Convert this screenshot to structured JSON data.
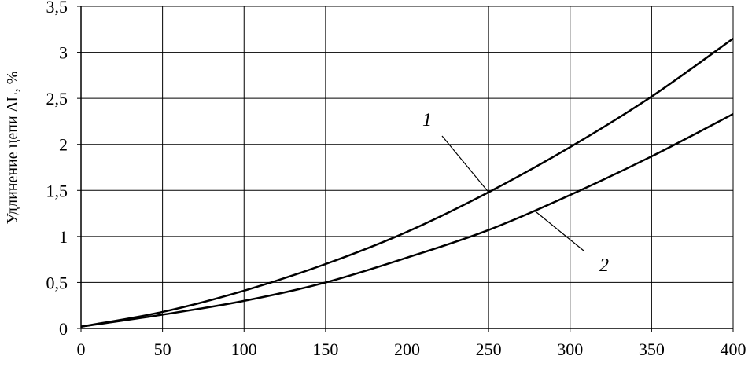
{
  "chart_data": {
    "type": "line",
    "title": "",
    "xlabel": "",
    "ylabel": "Удлинение цепи ΔL, %",
    "xlim": [
      0,
      400
    ],
    "ylim": [
      0,
      3.5
    ],
    "grid": true,
    "x_ticks": [
      "0",
      "50",
      "100",
      "150",
      "200",
      "250",
      "300",
      "350",
      "400"
    ],
    "y_ticks": [
      "0",
      "0,5",
      "1",
      "1,5",
      "2",
      "2,5",
      "3",
      "3,5"
    ],
    "series": [
      {
        "name": "1",
        "x": [
          0,
          50,
          100,
          150,
          200,
          250,
          300,
          350,
          400
        ],
        "y": [
          0.02,
          0.18,
          0.41,
          0.7,
          1.05,
          1.48,
          1.97,
          2.52,
          3.15
        ]
      },
      {
        "name": "2",
        "x": [
          0,
          50,
          100,
          150,
          200,
          250,
          300,
          350,
          400
        ],
        "y": [
          0.02,
          0.15,
          0.3,
          0.5,
          0.77,
          1.07,
          1.45,
          1.87,
          2.33
        ]
      }
    ],
    "annotations": [
      {
        "text": "1",
        "series": "1"
      },
      {
        "text": "2",
        "series": "2"
      }
    ]
  }
}
